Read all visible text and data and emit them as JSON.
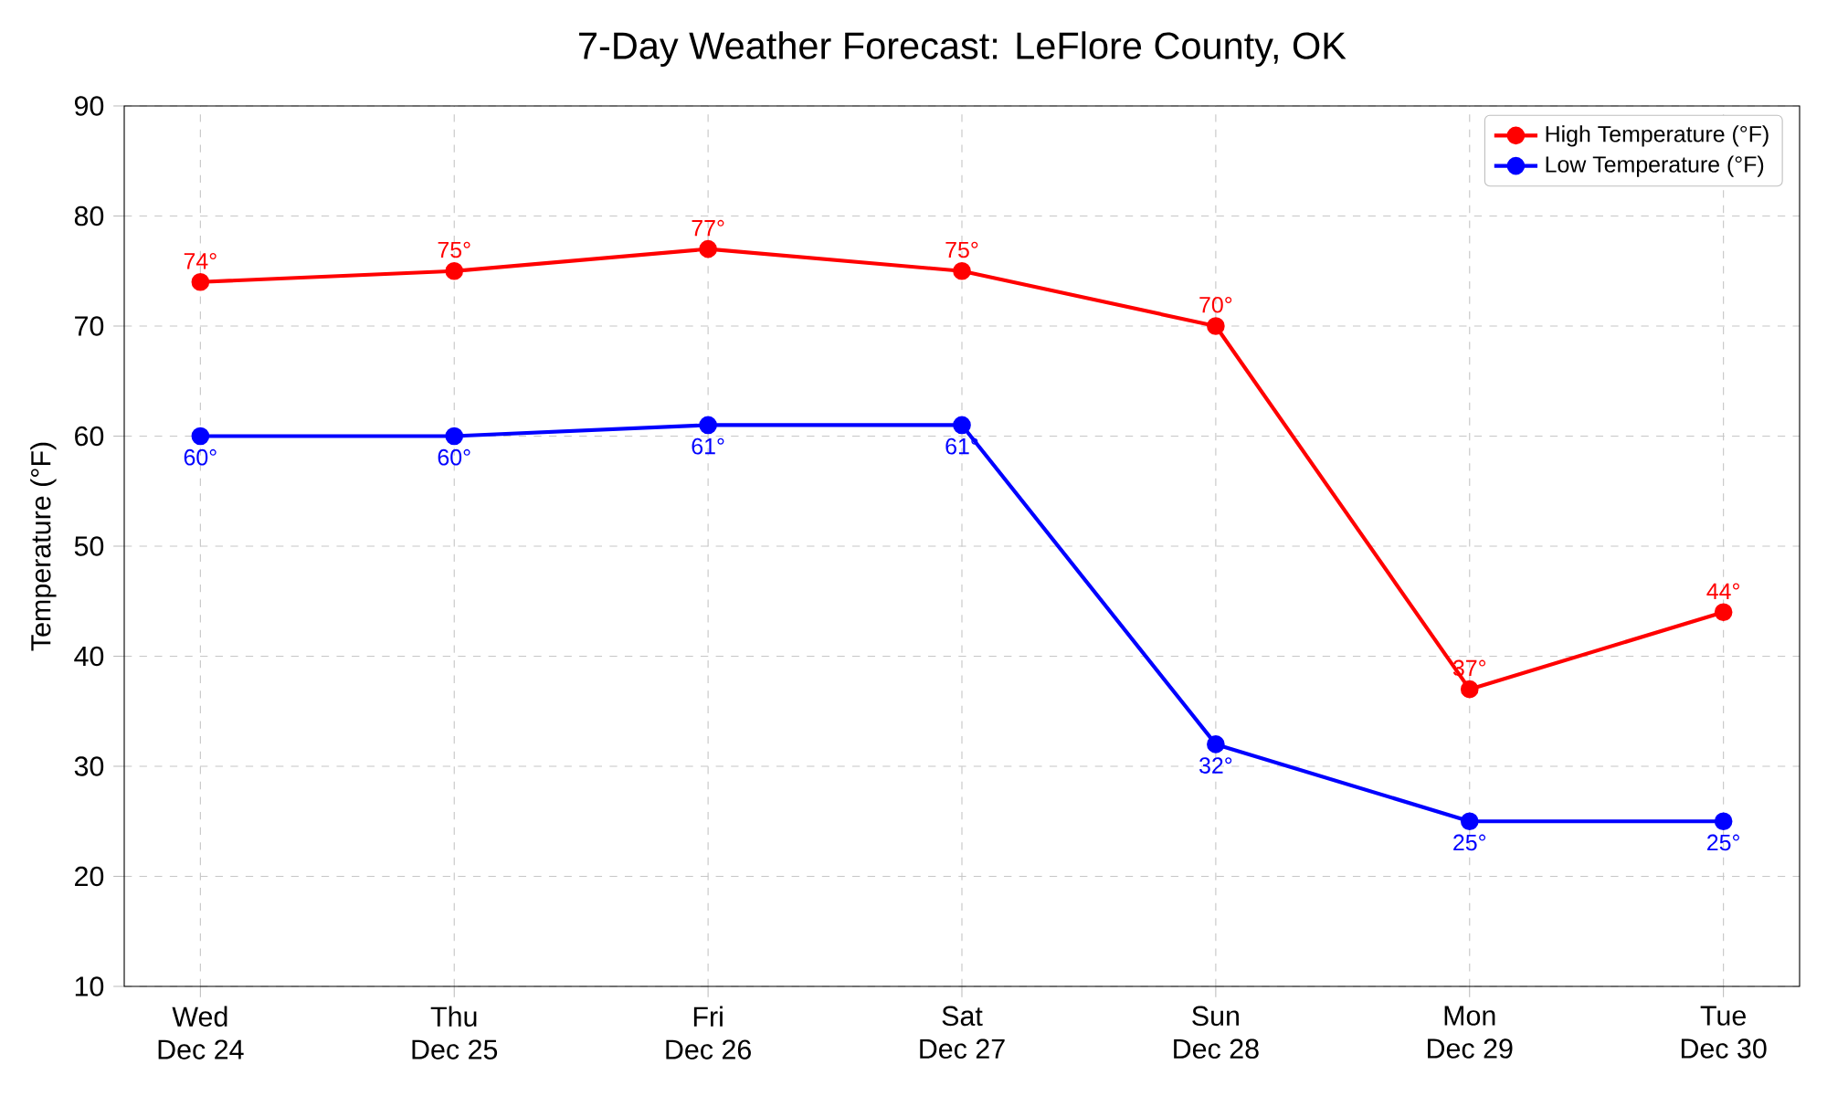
{
  "chart_data": {
    "type": "line",
    "title": "7-Day Weather Forecast: LeFlore County, OK",
    "ylabel": "Temperature (°F)",
    "categories": [
      "Wed\nDec 24",
      "Thu\nDec 25",
      "Fri\nDec 26",
      "Sat\nDec 27",
      "Sun\nDec 28",
      "Mon\nDec 29",
      "Tue\nDec 30"
    ],
    "series": [
      {
        "name": "High Temperature (°F)",
        "color": "#ff0000",
        "values": [
          74,
          75,
          77,
          75,
          70,
          37,
          44
        ],
        "value_labels": [
          "74°",
          "75°",
          "77°",
          "75°",
          "70°",
          "37°",
          "44°"
        ]
      },
      {
        "name": "Low Temperature (°F)",
        "color": "#0000ff",
        "values": [
          60,
          60,
          61,
          61,
          32,
          25,
          25
        ],
        "value_labels": [
          "60°",
          "60°",
          "61°",
          "61°",
          "32°",
          "25°",
          "25°"
        ]
      }
    ],
    "ylim": [
      10,
      90
    ],
    "yticks": [
      10,
      20,
      30,
      40,
      50,
      60,
      70,
      80,
      90
    ],
    "grid": true,
    "legend": "top right",
    "marker": "circle",
    "line_style": "solid"
  }
}
